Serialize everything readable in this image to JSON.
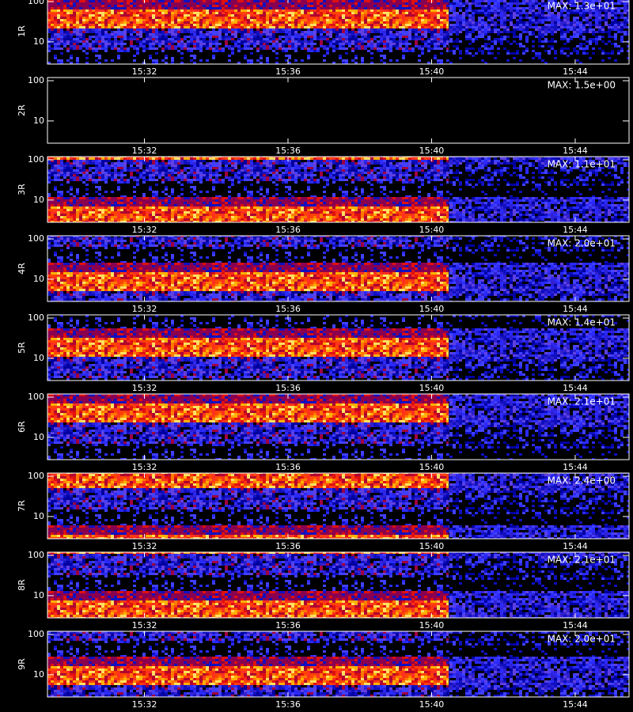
{
  "chart_data": [
    {
      "type": "heatmap",
      "ylabel": "1R",
      "annotation": "MAX: 1.3e+01",
      "log_y": true,
      "ylim": [
        2.8,
        120
      ],
      "yticks": [
        10,
        100
      ],
      "xlim": [
        929.3,
        945.5
      ],
      "xticks": [
        {
          "value": 932,
          "label": "15:32"
        },
        {
          "value": 936,
          "label": "15:36"
        },
        {
          "value": 940,
          "label": "15:40"
        },
        {
          "value": 944,
          "label": "15:44"
        }
      ]
    },
    {
      "type": "heatmap",
      "ylabel": "2R",
      "annotation": "MAX: 1.5e+00",
      "log_y": true,
      "ylim": [
        2.8,
        120
      ],
      "yticks": [
        10,
        100
      ],
      "xlim": [
        929.3,
        945.5
      ],
      "xticks": [
        {
          "value": 932,
          "label": "15:32"
        },
        {
          "value": 936,
          "label": "15:36"
        },
        {
          "value": 940,
          "label": "15:40"
        },
        {
          "value": 944,
          "label": "15:44"
        }
      ]
    },
    {
      "type": "heatmap",
      "ylabel": "3R",
      "annotation": "MAX: 1.1e+01",
      "log_y": true,
      "ylim": [
        2.8,
        120
      ],
      "yticks": [
        10,
        100
      ],
      "xlim": [
        929.3,
        945.5
      ],
      "xticks": [
        {
          "value": 932,
          "label": "15:32"
        },
        {
          "value": 936,
          "label": "15:36"
        },
        {
          "value": 940,
          "label": "15:40"
        },
        {
          "value": 944,
          "label": "15:44"
        }
      ]
    },
    {
      "type": "heatmap",
      "ylabel": "4R",
      "annotation": "MAX: 2.0e+01",
      "log_y": true,
      "ylim": [
        2.8,
        120
      ],
      "yticks": [
        10,
        100
      ],
      "xlim": [
        929.3,
        945.5
      ],
      "xticks": [
        {
          "value": 932,
          "label": "15:32"
        },
        {
          "value": 936,
          "label": "15:36"
        },
        {
          "value": 940,
          "label": "15:40"
        },
        {
          "value": 944,
          "label": "15:44"
        }
      ]
    },
    {
      "type": "heatmap",
      "ylabel": "5R",
      "annotation": "MAX: 1.4e+01",
      "log_y": true,
      "ylim": [
        2.8,
        120
      ],
      "yticks": [
        10,
        100
      ],
      "xlim": [
        929.3,
        945.5
      ],
      "xticks": [
        {
          "value": 932,
          "label": "15:32"
        },
        {
          "value": 936,
          "label": "15:36"
        },
        {
          "value": 940,
          "label": "15:40"
        },
        {
          "value": 944,
          "label": "15:44"
        }
      ]
    },
    {
      "type": "heatmap",
      "ylabel": "6R",
      "annotation": "MAX: 2.1e+01",
      "log_y": true,
      "ylim": [
        2.8,
        120
      ],
      "yticks": [
        10,
        100
      ],
      "xlim": [
        929.3,
        945.5
      ],
      "xticks": [
        {
          "value": 932,
          "label": "15:32"
        },
        {
          "value": 936,
          "label": "15:36"
        },
        {
          "value": 940,
          "label": "15:40"
        },
        {
          "value": 944,
          "label": "15:44"
        }
      ]
    },
    {
      "type": "heatmap",
      "ylabel": "7R",
      "annotation": "MAX: 2.4e+00",
      "log_y": true,
      "ylim": [
        2.8,
        120
      ],
      "yticks": [
        10,
        100
      ],
      "xlim": [
        929.3,
        945.5
      ],
      "xticks": [
        {
          "value": 932,
          "label": "15:32"
        },
        {
          "value": 936,
          "label": "15:36"
        },
        {
          "value": 940,
          "label": "15:40"
        },
        {
          "value": 944,
          "label": "15:44"
        }
      ]
    },
    {
      "type": "heatmap",
      "ylabel": "8R",
      "annotation": "MAX: 2.1e+01",
      "log_y": true,
      "ylim": [
        2.8,
        120
      ],
      "yticks": [
        10,
        100
      ],
      "xlim": [
        929.3,
        945.5
      ],
      "xticks": [
        {
          "value": 932,
          "label": "15:32"
        },
        {
          "value": 936,
          "label": "15:36"
        },
        {
          "value": 940,
          "label": "15:40"
        },
        {
          "value": 944,
          "label": "15:44"
        }
      ]
    },
    {
      "type": "heatmap",
      "ylabel": "9R",
      "annotation": "MAX: 2.0e+01",
      "log_y": true,
      "ylim": [
        2.8,
        120
      ],
      "yticks": [
        10,
        100
      ],
      "xlim": [
        929.3,
        945.5
      ],
      "xticks": [
        {
          "value": 932,
          "label": "15:32"
        },
        {
          "value": 936,
          "label": "15:36"
        },
        {
          "value": 940,
          "label": "15:40"
        },
        {
          "value": 944,
          "label": "15:44"
        }
      ]
    }
  ]
}
